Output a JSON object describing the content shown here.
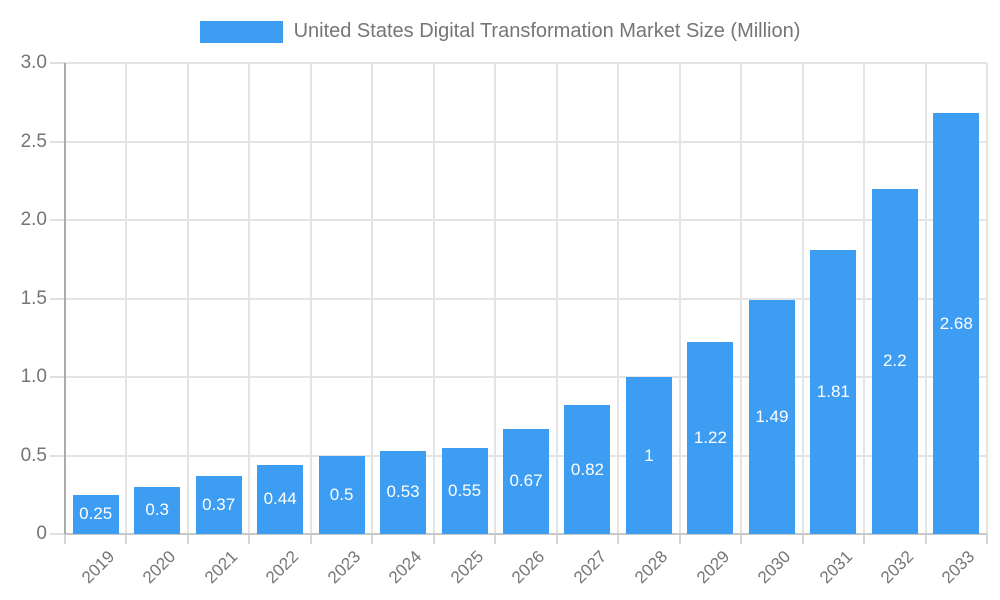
{
  "legend": {
    "label": "United States Digital Transformation Market Size (Million)",
    "swatch_color": "#3D9DF2"
  },
  "chart_data": {
    "type": "bar",
    "title": "United States Digital Transformation Market Size (Million)",
    "categories": [
      "2019",
      "2020",
      "2021",
      "2022",
      "2023",
      "2024",
      "2025",
      "2026",
      "2027",
      "2028",
      "2029",
      "2030",
      "2031",
      "2032",
      "2033"
    ],
    "values": [
      0.25,
      0.3,
      0.37,
      0.44,
      0.5,
      0.53,
      0.55,
      0.67,
      0.82,
      1,
      1.22,
      1.49,
      1.81,
      2.2,
      2.68
    ],
    "bar_labels": [
      "0.25",
      "0.3",
      "0.37",
      "0.44",
      "0.5",
      "0.53",
      "0.55",
      "0.67",
      "0.82",
      "1",
      "1.22",
      "1.49",
      "1.81",
      "2.2",
      "2.68"
    ],
    "xlabel": "",
    "ylabel": "",
    "ylim": [
      0,
      3
    ],
    "y_tick_values": [
      0,
      0.5,
      1,
      1.5,
      2,
      2.5,
      3
    ],
    "y_tick_labels": [
      "0",
      "0.5",
      "1.0",
      "1.5",
      "2.0",
      "2.5",
      "3.0"
    ],
    "grid": true,
    "legend_position": "top",
    "bar_label_position": "center",
    "colors": {
      "bar": "#3D9DF2",
      "grid": "#E4E4E4",
      "axis": "#ABABAB",
      "text": "#757575",
      "bar_label": "#FFFFFF"
    }
  }
}
